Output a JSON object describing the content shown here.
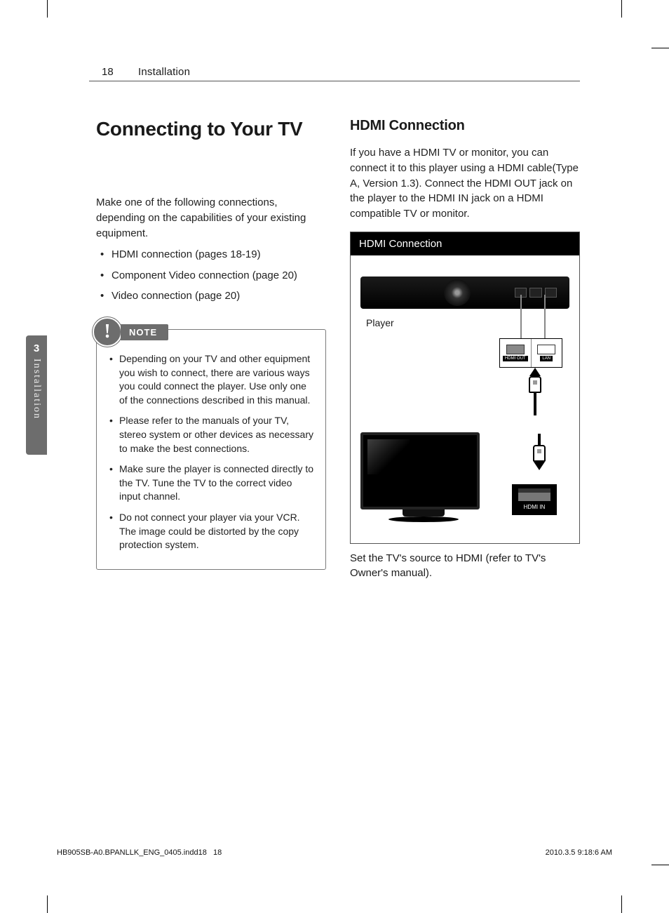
{
  "header": {
    "page_number": "18",
    "section": "Installation"
  },
  "side_tab": {
    "chapter_number": "3",
    "chapter_label": "Installation"
  },
  "left_column": {
    "title": "Connecting to Your TV",
    "intro": "Make one of the following connections, depending on the capabilities of your existing equipment.",
    "bullets": [
      "HDMI connection (pages 18-19)",
      "Component Video connection (page 20)",
      "Video connection (page 20)"
    ],
    "note": {
      "badge_label": "NOTE",
      "items": [
        "Depending on your TV and other equipment you wish to connect, there are various ways you could connect the player. Use only one of the connections described in this manual.",
        "Please refer to the manuals of your TV, stereo system or other devices as necessary to make the best connections.",
        "Make sure the player is connected directly to the TV. Tune the TV to the correct video input channel.",
        "Do not connect your player via your VCR. The image could be distorted by the copy protection system."
      ]
    }
  },
  "right_column": {
    "subtitle": "HDMI Connection",
    "paragraph": "If you have a HDMI TV or monitor, you can connect it to this player using a HDMI cable(Type A, Version 1.3). Connect the HDMI OUT jack on the player to the HDMI IN jack on a HDMI compatible TV or monitor.",
    "diagram": {
      "header": "HDMI Connection",
      "player_label": "Player",
      "tv_label": "TV",
      "port_hdmi_out": "HDMI OUT",
      "port_lan": "LAN",
      "port_hdmi_in": "HDMI IN"
    },
    "caption": "Set the TV's source to HDMI (refer to TV's Owner's manual)."
  },
  "footer": {
    "filename": "HB905SB-A0.BPANLLK_ENG_0405.indd",
    "page_in_file_label": "18",
    "inner_page": "18",
    "timestamp": "2010.3.5   9:18:6 AM"
  },
  "colors": {
    "text": "#1a1a1a",
    "rule": "#555555",
    "tab_bg": "#6d6d6d",
    "note_border": "#7a7a7a",
    "diagram_header_bg": "#000000"
  }
}
